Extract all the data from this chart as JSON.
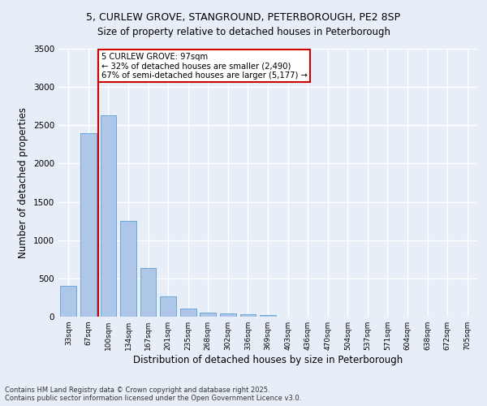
{
  "title_line1": "5, CURLEW GROVE, STANGROUND, PETERBOROUGH, PE2 8SP",
  "title_line2": "Size of property relative to detached houses in Peterborough",
  "xlabel": "Distribution of detached houses by size in Peterborough",
  "ylabel": "Number of detached properties",
  "categories": [
    "33sqm",
    "67sqm",
    "100sqm",
    "134sqm",
    "167sqm",
    "201sqm",
    "235sqm",
    "268sqm",
    "302sqm",
    "336sqm",
    "369sqm",
    "403sqm",
    "436sqm",
    "470sqm",
    "504sqm",
    "537sqm",
    "571sqm",
    "604sqm",
    "638sqm",
    "672sqm",
    "705sqm"
  ],
  "values": [
    400,
    2400,
    2630,
    1250,
    640,
    270,
    110,
    55,
    45,
    35,
    20,
    0,
    0,
    0,
    0,
    0,
    0,
    0,
    0,
    0,
    0
  ],
  "bar_color": "#aec6e8",
  "bar_edge_color": "#5a9fd4",
  "vline_color": "#cc0000",
  "vline_x_index": 1.5,
  "annotation_text": "5 CURLEW GROVE: 97sqm\n← 32% of detached houses are smaller (2,490)\n67% of semi-detached houses are larger (5,177) →",
  "annotation_box_color": "#ffffff",
  "annotation_box_edge_color": "#cc0000",
  "ylim": [
    0,
    3500
  ],
  "yticks": [
    0,
    500,
    1000,
    1500,
    2000,
    2500,
    3000,
    3500
  ],
  "background_color": "#e8eef8",
  "grid_color": "#ffffff",
  "footer_line1": "Contains HM Land Registry data © Crown copyright and database right 2025.",
  "footer_line2": "Contains public sector information licensed under the Open Government Licence v3.0."
}
